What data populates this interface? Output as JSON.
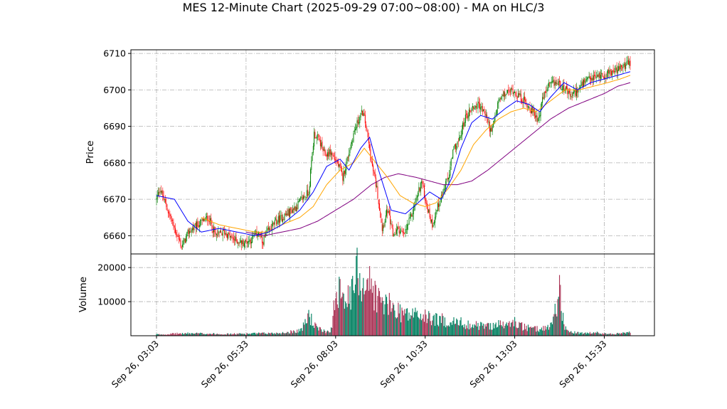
{
  "chart_data": {
    "type": "candlestick",
    "title": "MES 12-Minute Chart (2025-09-29 07:00~08:00) - MA on HLC/3",
    "price_panel": {
      "ylabel": "Price",
      "ylim": [
        6655,
        6711
      ],
      "yticks": [
        6660,
        6670,
        6680,
        6690,
        6700,
        6710
      ],
      "grid": true
    },
    "volume_panel": {
      "ylabel": "Volume",
      "ylim": [
        0,
        24000
      ],
      "yticks": [
        10000,
        20000
      ],
      "grid": true
    },
    "x_axis": {
      "tick_labels": [
        "Sep 26, 03:03",
        "Sep 26, 05:33",
        "Sep 26, 08:03",
        "Sep 26, 10:33",
        "Sep 26, 13:03",
        "Sep 26, 15:33"
      ],
      "tick_rotation_deg": 45
    },
    "colors": {
      "up": "#008000",
      "down": "#ff0000",
      "ma_fast": "#0000ff",
      "ma_mid": "#ffa500",
      "ma_slow": "#800080",
      "vol_up": "#008060",
      "vol_down": "#aa3355"
    },
    "price_path": [
      [
        0,
        6670
      ],
      [
        4,
        6673
      ],
      [
        8,
        6670
      ],
      [
        14,
        6666
      ],
      [
        20,
        6662
      ],
      [
        28,
        6657
      ],
      [
        36,
        6661
      ],
      [
        46,
        6663
      ],
      [
        58,
        6665
      ],
      [
        66,
        6660
      ],
      [
        76,
        6661
      ],
      [
        86,
        6659
      ],
      [
        96,
        6658
      ],
      [
        106,
        6659
      ],
      [
        114,
        6661
      ],
      [
        118,
        6658
      ],
      [
        124,
        6661
      ],
      [
        134,
        6664
      ],
      [
        146,
        6666
      ],
      [
        156,
        6668
      ],
      [
        162,
        6670
      ],
      [
        170,
        6672
      ],
      [
        176,
        6688
      ],
      [
        182,
        6686
      ],
      [
        188,
        6682
      ],
      [
        194,
        6683
      ],
      [
        202,
        6680
      ],
      [
        208,
        6676
      ],
      [
        214,
        6682
      ],
      [
        220,
        6688
      ],
      [
        226,
        6692
      ],
      [
        230,
        6694
      ],
      [
        234,
        6690
      ],
      [
        240,
        6680
      ],
      [
        246,
        6673
      ],
      [
        252,
        6662
      ],
      [
        258,
        6667
      ],
      [
        264,
        6660
      ],
      [
        270,
        6662
      ],
      [
        276,
        6660
      ],
      [
        284,
        6665
      ],
      [
        290,
        6670
      ],
      [
        296,
        6675
      ],
      [
        302,
        6668
      ],
      [
        308,
        6663
      ],
      [
        314,
        6668
      ],
      [
        320,
        6672
      ],
      [
        326,
        6676
      ],
      [
        332,
        6684
      ],
      [
        338,
        6686
      ],
      [
        344,
        6692
      ],
      [
        352,
        6695
      ],
      [
        360,
        6696
      ],
      [
        368,
        6693
      ],
      [
        374,
        6688
      ],
      [
        382,
        6697
      ],
      [
        390,
        6699
      ],
      [
        398,
        6700
      ],
      [
        406,
        6698
      ],
      [
        414,
        6696
      ],
      [
        420,
        6694
      ],
      [
        426,
        6692
      ],
      [
        432,
        6698
      ],
      [
        438,
        6701
      ],
      [
        446,
        6702
      ],
      [
        454,
        6701
      ],
      [
        462,
        6698
      ],
      [
        470,
        6700
      ],
      [
        478,
        6702
      ],
      [
        486,
        6703
      ],
      [
        494,
        6704
      ],
      [
        500,
        6704
      ],
      [
        506,
        6705
      ],
      [
        512,
        6705
      ],
      [
        518,
        6706
      ],
      [
        524,
        6707
      ],
      [
        529,
        6707
      ]
    ],
    "volume_profile": [
      [
        0,
        400
      ],
      [
        10,
        400
      ],
      [
        20,
        600
      ],
      [
        40,
        700
      ],
      [
        60,
        600
      ],
      [
        80,
        500
      ],
      [
        100,
        600
      ],
      [
        120,
        700
      ],
      [
        140,
        800
      ],
      [
        150,
        1200
      ],
      [
        160,
        1600
      ],
      [
        165,
        3000
      ],
      [
        170,
        6500
      ],
      [
        175,
        3500
      ],
      [
        180,
        2000
      ],
      [
        190,
        1200
      ],
      [
        196,
        2000
      ],
      [
        200,
        13000
      ],
      [
        205,
        16000
      ],
      [
        210,
        13000
      ],
      [
        215,
        10000
      ],
      [
        220,
        14000
      ],
      [
        225,
        20000
      ],
      [
        230,
        15000
      ],
      [
        235,
        17000
      ],
      [
        240,
        14000
      ],
      [
        245,
        12000
      ],
      [
        250,
        10000
      ],
      [
        258,
        9000
      ],
      [
        266,
        8000
      ],
      [
        274,
        7000
      ],
      [
        282,
        6000
      ],
      [
        290,
        6500
      ],
      [
        298,
        5500
      ],
      [
        310,
        5000
      ],
      [
        320,
        4500
      ],
      [
        330,
        4000
      ],
      [
        340,
        3800
      ],
      [
        350,
        3200
      ],
      [
        360,
        3000
      ],
      [
        370,
        2800
      ],
      [
        380,
        3500
      ],
      [
        390,
        3000
      ],
      [
        400,
        4000
      ],
      [
        410,
        2500
      ],
      [
        420,
        2000
      ],
      [
        430,
        2000
      ],
      [
        440,
        3000
      ],
      [
        445,
        7000
      ],
      [
        450,
        14000
      ],
      [
        455,
        3000
      ],
      [
        460,
        1200
      ],
      [
        470,
        800
      ],
      [
        480,
        700
      ],
      [
        490,
        900
      ],
      [
        500,
        600
      ],
      [
        510,
        500
      ],
      [
        520,
        700
      ],
      [
        529,
        1000
      ]
    ],
    "ma_fast_path": [
      [
        0,
        6671
      ],
      [
        20,
        6670
      ],
      [
        35,
        6664
      ],
      [
        50,
        6661
      ],
      [
        70,
        6662
      ],
      [
        90,
        6661
      ],
      [
        110,
        6660
      ],
      [
        125,
        6661
      ],
      [
        140,
        6663
      ],
      [
        160,
        6667
      ],
      [
        175,
        6672
      ],
      [
        190,
        6679
      ],
      [
        205,
        6681
      ],
      [
        215,
        6678
      ],
      [
        228,
        6684
      ],
      [
        238,
        6687
      ],
      [
        248,
        6678
      ],
      [
        262,
        6667
      ],
      [
        278,
        6666
      ],
      [
        292,
        6669
      ],
      [
        305,
        6672
      ],
      [
        318,
        6670
      ],
      [
        330,
        6676
      ],
      [
        340,
        6684
      ],
      [
        352,
        6691
      ],
      [
        362,
        6693
      ],
      [
        375,
        6692
      ],
      [
        390,
        6695
      ],
      [
        402,
        6697
      ],
      [
        416,
        6696
      ],
      [
        428,
        6694
      ],
      [
        440,
        6698
      ],
      [
        455,
        6702
      ],
      [
        470,
        6700
      ],
      [
        485,
        6702
      ],
      [
        500,
        6703
      ],
      [
        515,
        6704
      ],
      [
        529,
        6705
      ]
    ],
    "ma_mid_path": [
      [
        50,
        6665
      ],
      [
        70,
        6663
      ],
      [
        90,
        6662
      ],
      [
        110,
        6661
      ],
      [
        125,
        6661
      ],
      [
        140,
        6663
      ],
      [
        160,
        6665
      ],
      [
        175,
        6668
      ],
      [
        190,
        6674
      ],
      [
        205,
        6678
      ],
      [
        220,
        6680
      ],
      [
        232,
        6684
      ],
      [
        245,
        6680
      ],
      [
        258,
        6676
      ],
      [
        272,
        6671
      ],
      [
        286,
        6669
      ],
      [
        300,
        6668
      ],
      [
        312,
        6669
      ],
      [
        326,
        6673
      ],
      [
        340,
        6678
      ],
      [
        354,
        6685
      ],
      [
        368,
        6689
      ],
      [
        382,
        6692
      ],
      [
        396,
        6694
      ],
      [
        410,
        6695
      ],
      [
        424,
        6694
      ],
      [
        440,
        6697
      ],
      [
        456,
        6700
      ],
      [
        472,
        6700
      ],
      [
        488,
        6701
      ],
      [
        504,
        6702
      ],
      [
        518,
        6703
      ],
      [
        529,
        6704
      ]
    ],
    "ma_slow_path": [
      [
        100,
        6661
      ],
      [
        120,
        6660
      ],
      [
        140,
        6661
      ],
      [
        160,
        6662
      ],
      [
        180,
        6664
      ],
      [
        200,
        6667
      ],
      [
        220,
        6670
      ],
      [
        240,
        6674
      ],
      [
        255,
        6676
      ],
      [
        270,
        6677
      ],
      [
        290,
        6676
      ],
      [
        305,
        6675
      ],
      [
        320,
        6674
      ],
      [
        336,
        6674
      ],
      [
        352,
        6675
      ],
      [
        370,
        6678
      ],
      [
        390,
        6682
      ],
      [
        410,
        6686
      ],
      [
        425,
        6689
      ],
      [
        440,
        6692
      ],
      [
        460,
        6695
      ],
      [
        480,
        6697
      ],
      [
        500,
        6699
      ],
      [
        515,
        6701
      ],
      [
        529,
        6702
      ]
    ],
    "n_bars": 530
  }
}
